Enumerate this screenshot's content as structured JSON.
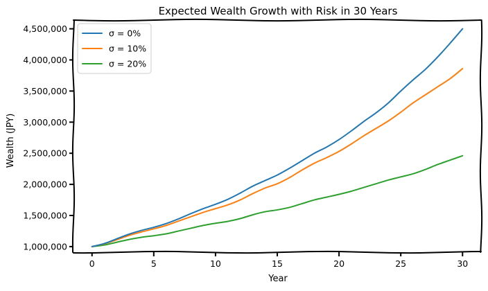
{
  "chart_data": {
    "type": "line",
    "title": "Expected Wealth Growth with Risk in 30 Years",
    "xlabel": "Year",
    "ylabel": "Wealth (JPY)",
    "xlim": [
      -1.5,
      31.5
    ],
    "ylim": [
      910000,
      4640000
    ],
    "xticks": [
      0,
      5,
      10,
      15,
      20,
      25,
      30
    ],
    "xtick_labels": [
      "0",
      "5",
      "10",
      "15",
      "20",
      "25",
      "30"
    ],
    "yticks": [
      1000000,
      1500000,
      2000000,
      2500000,
      3000000,
      3500000,
      4000000,
      4500000
    ],
    "ytick_labels": [
      "1,000,000",
      "1,500,000",
      "2,000,000",
      "2,500,000",
      "3,000,000",
      "3,500,000",
      "4,000,000",
      "4,500,000"
    ],
    "grid": false,
    "legend_position": "top-left",
    "x": [
      0,
      1,
      2,
      3,
      4,
      5,
      6,
      7,
      8,
      9,
      10,
      11,
      12,
      13,
      14,
      15,
      16,
      17,
      18,
      19,
      20,
      21,
      22,
      23,
      24,
      25,
      26,
      27,
      28,
      29,
      30
    ],
    "series": [
      {
        "name": "σ = 0%",
        "color": "#1f77b4",
        "values": [
          1000000,
          1050000,
          1125000,
          1200000,
          1260000,
          1310000,
          1370000,
          1445000,
          1530000,
          1610000,
          1680000,
          1760000,
          1860000,
          1970000,
          2060000,
          2150000,
          2260000,
          2380000,
          2500000,
          2600000,
          2720000,
          2860000,
          3010000,
          3150000,
          3310000,
          3500000,
          3680000,
          3850000,
          4050000,
          4270000,
          4500000
        ]
      },
      {
        "name": "σ = 10%",
        "color": "#ff7f0e",
        "values": [
          1000000,
          1045000,
          1110000,
          1180000,
          1235000,
          1285000,
          1340000,
          1410000,
          1480000,
          1550000,
          1610000,
          1670000,
          1750000,
          1850000,
          1940000,
          2010000,
          2110000,
          2230000,
          2340000,
          2430000,
          2530000,
          2650000,
          2780000,
          2900000,
          3020000,
          3160000,
          3310000,
          3440000,
          3570000,
          3700000,
          3860000
        ]
      },
      {
        "name": "σ = 20%",
        "color": "#2ca02c",
        "values": [
          1000000,
          1025000,
          1070000,
          1115000,
          1150000,
          1175000,
          1205000,
          1250000,
          1295000,
          1340000,
          1375000,
          1405000,
          1450000,
          1510000,
          1560000,
          1590000,
          1630000,
          1690000,
          1750000,
          1795000,
          1840000,
          1890000,
          1950000,
          2010000,
          2070000,
          2120000,
          2170000,
          2240000,
          2320000,
          2390000,
          2460000
        ]
      }
    ]
  }
}
